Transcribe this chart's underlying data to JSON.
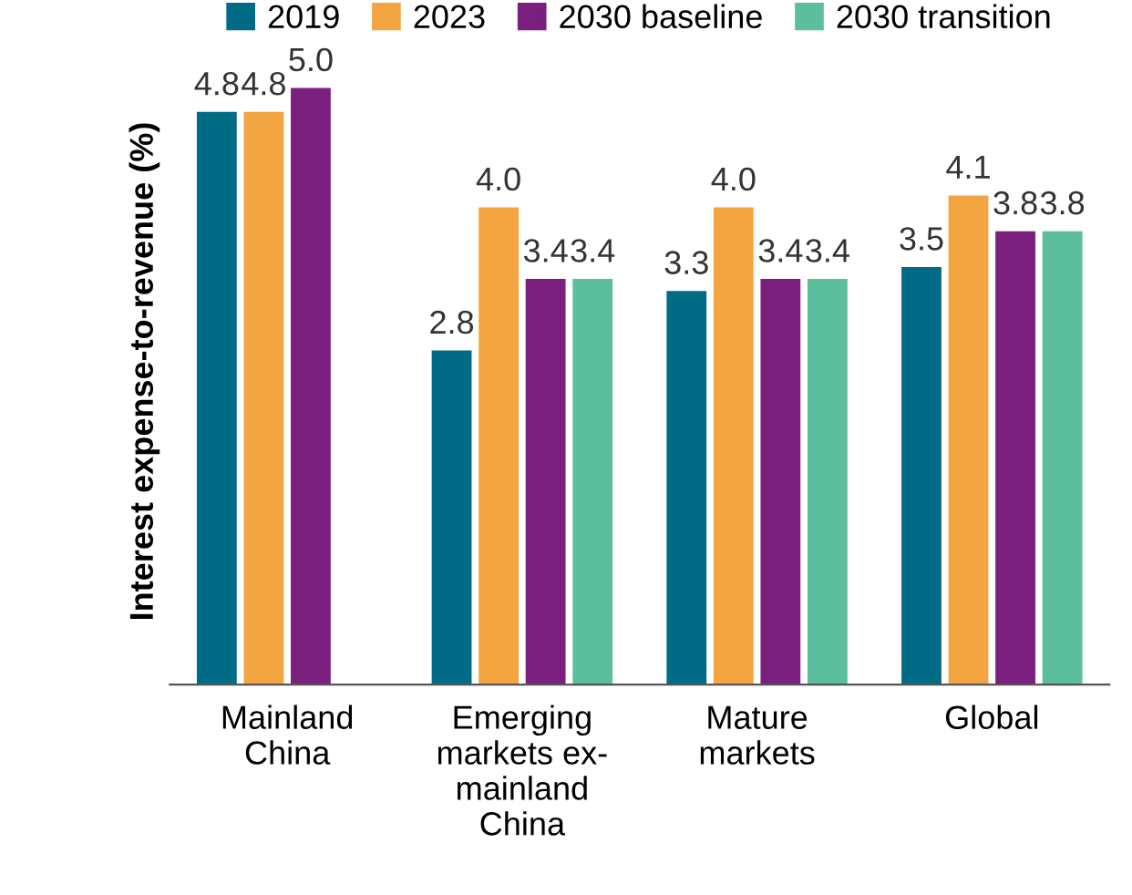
{
  "chart_data": {
    "type": "bar",
    "ylabel": "Interest expense-to-revenue (%)",
    "categories": [
      "Mainland\nChina",
      "Emerging\nmarkets ex-\nmainland\nChina",
      "Mature\nmarkets",
      "Global"
    ],
    "series": [
      {
        "name": "2019",
        "color": "#006b85",
        "values": [
          4.8,
          2.8,
          3.3,
          3.5
        ],
        "value_labels": [
          "4.8",
          "2.8",
          "3.3",
          "3.5"
        ]
      },
      {
        "name": "2023",
        "color": "#f2a541",
        "values": [
          4.8,
          4.0,
          4.0,
          4.1
        ],
        "value_labels": [
          "4.8",
          "4.0",
          "4.0",
          "4.1"
        ]
      },
      {
        "name": "2030 baseline",
        "color": "#7b1f7f",
        "values": [
          5.0,
          3.4,
          3.4,
          3.8
        ],
        "value_labels": [
          "5.0",
          "3.4",
          "3.4",
          "3.8"
        ]
      },
      {
        "name": "2030 transition",
        "color": "#5bbf9e",
        "values": [
          null,
          3.4,
          3.4,
          3.8
        ],
        "value_labels": [
          null,
          "3.4",
          "3.4",
          "3.8"
        ]
      }
    ],
    "tick_labels": "x",
    "legend": "top"
  }
}
